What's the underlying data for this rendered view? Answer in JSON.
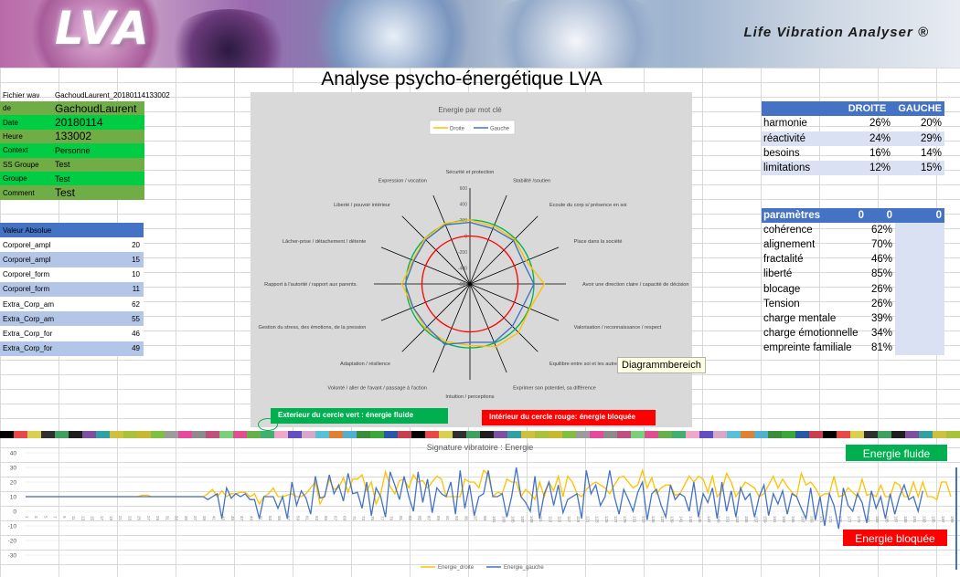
{
  "banner": {
    "logo": "LVA",
    "tagline": "Life Vibration Analyser ®"
  },
  "title": "Analyse psycho-énergétique LVA",
  "file": {
    "label": "Fichier wav",
    "value": "GachoudLaurent_20180114133002"
  },
  "info": [
    {
      "key": "de",
      "value": "GachoudLaurent",
      "bg": "#70ad47"
    },
    {
      "key": "Date",
      "value": "20180114",
      "bg": "#00cc44"
    },
    {
      "key": "Heure",
      "value": "133002",
      "bg": "#70ad47"
    },
    {
      "key": "Context",
      "value": "Personne",
      "bg": "#00cc44"
    },
    {
      "key": "SS Groupe",
      "value": "Test",
      "bg": "#70ad47"
    },
    {
      "key": "Groupe",
      "value": "Test",
      "bg": "#00cc44"
    },
    {
      "key": "Comment",
      "value": "Test",
      "bg": "#70ad47"
    }
  ],
  "absolute": {
    "header": "Valeur Absolue",
    "rows": [
      {
        "key": "Corporel_ampl",
        "value": "20"
      },
      {
        "key": "Corporel_ampl",
        "value": "15"
      },
      {
        "key": "Corporel_form",
        "value": "10"
      },
      {
        "key": "Corporel_form",
        "value": "11"
      },
      {
        "key": "Extra_Corp_am",
        "value": "62"
      },
      {
        "key": "Extra_Corp_am",
        "value": "55"
      },
      {
        "key": "Extra_Corp_for",
        "value": "46"
      },
      {
        "key": "Extra_Corp_for",
        "value": "49"
      }
    ]
  },
  "droite_gauche": {
    "header_droite": "DROITE",
    "header_gauche": "GAUCHE",
    "rows": [
      {
        "key": "harmonie",
        "droite": "26%",
        "gauche": "20%"
      },
      {
        "key": "réactivité",
        "droite": "24%",
        "gauche": "29%"
      },
      {
        "key": "besoins",
        "droite": "16%",
        "gauche": "14%"
      },
      {
        "key": "limitations",
        "droite": "12%",
        "gauche": "15%"
      }
    ]
  },
  "parametres": {
    "header": "paramètres",
    "header_values": [
      "0",
      "0",
      "0"
    ],
    "rows": [
      {
        "key": "cohérence",
        "value": "62%"
      },
      {
        "key": "alignement",
        "value": "70%"
      },
      {
        "key": "fractalité",
        "value": "46%"
      },
      {
        "key": "liberté",
        "value": "85%"
      },
      {
        "key": "blocage",
        "value": "26%"
      },
      {
        "key": "Tension",
        "value": "26%"
      },
      {
        "key": "charge mentale",
        "value": "39%"
      },
      {
        "key": "charge émotionnelle",
        "value": "34%"
      },
      {
        "key": "empreinte familiale",
        "value": "81%"
      }
    ]
  },
  "tooltip": "Diagrammbereich",
  "legend_buttons": {
    "green": "Exterieur du cercle vert : énergie fluide",
    "red": "Intérieur  du cercle rouge: énergie bloquée"
  },
  "badges": {
    "fluide": "Energie fluide",
    "bloquee": "Energie bloquée"
  },
  "colors": {
    "header_blue": "#4472c4",
    "light_blue": "#d9e1f2",
    "green": "#00b050",
    "red": "#ff0000",
    "droite": "#ffc000",
    "gauche": "#4472c4"
  },
  "chart_data": [
    {
      "type": "radar",
      "title": "Energie par mot clé",
      "legend": [
        "Droite",
        "Gauche"
      ],
      "legend_position": "top",
      "rlim": [
        -600,
        600
      ],
      "rticks": [
        "600",
        "400",
        "200",
        "0",
        "-200",
        "-400",
        "-600"
      ],
      "categories": [
        "Sécurité et protection",
        "Stabilité /soutien",
        "Ecoute du corp s/ présence en soi",
        "Place dans la société",
        "Avoir une direction claire / capacité de décision",
        "Valorisation / reconnaissance / respect",
        "Equilibre entre soi et les autres / positionnement",
        "Exprimer son potentiel, sa différence",
        "Intuition / perceptions",
        "Volonté / aller de l'avant / passage à l'action",
        "Adaptation / résilience",
        "Gestion du stress, des émotions, de la pression",
        "Rapport à l'autorité / rapport aux parents.",
        "Lâcher-prise / détachement / détente",
        "Liberté / pouvoir intérieur",
        "Expression / vocation"
      ],
      "series": [
        {
          "name": "Droite",
          "values": [
            200,
            180,
            190,
            160,
            330,
            210,
            260,
            250,
            170,
            180,
            190,
            170,
            250,
            170,
            200,
            220
          ]
        },
        {
          "name": "Gauche",
          "values": [
            170,
            150,
            170,
            120,
            200,
            120,
            150,
            190,
            130,
            220,
            160,
            170,
            210,
            160,
            180,
            200
          ]
        }
      ],
      "reference_circles": [
        {
          "name": "vert",
          "value": 200
        },
        {
          "name": "rouge",
          "value": 0
        }
      ]
    },
    {
      "type": "line",
      "title": "Signature vibratoire : Energie",
      "ylim": [
        -30,
        40
      ],
      "yticks": [
        40,
        30,
        20,
        10,
        0,
        -10,
        -20,
        -30
      ],
      "x_start": 1,
      "x_end": 199,
      "series": [
        {
          "name": "Energie_droite",
          "values": [
            10,
            10,
            10,
            10,
            10,
            10,
            10,
            10,
            10,
            10,
            10,
            10,
            10,
            10,
            10,
            10,
            10,
            10,
            10,
            10,
            10,
            10,
            10,
            10,
            10,
            11,
            11,
            10,
            10,
            10,
            10,
            10,
            10,
            10,
            10,
            10,
            10,
            10,
            10,
            12,
            15,
            10,
            14,
            10,
            12,
            12,
            13,
            13,
            10,
            12,
            5,
            10,
            12,
            16,
            10,
            10,
            11,
            12,
            10,
            10,
            12,
            16,
            20,
            5,
            11,
            22,
            15,
            16,
            23,
            13,
            22,
            22,
            25,
            14,
            20,
            5,
            12,
            27,
            17,
            12,
            21,
            22,
            16,
            25,
            20,
            21,
            16,
            20,
            24,
            22,
            10,
            10,
            10,
            10,
            22,
            20,
            20,
            16,
            28,
            25,
            10,
            13,
            12,
            22,
            20,
            20,
            10,
            15,
            12,
            8,
            20,
            10,
            20,
            14,
            24,
            10,
            24,
            20,
            12,
            10,
            15,
            18,
            20,
            18,
            16,
            12,
            18,
            23,
            24,
            20,
            16,
            18,
            28,
            16,
            23,
            12,
            16,
            18,
            18,
            11,
            12,
            18,
            24,
            20,
            24,
            22,
            13,
            24,
            10,
            14,
            26,
            20,
            10,
            15,
            20,
            18,
            16,
            10,
            12,
            18,
            24,
            16,
            22,
            17,
            13,
            10,
            26,
            18,
            20,
            16,
            10,
            12,
            12,
            24,
            10,
            11,
            16,
            13,
            10,
            22,
            11,
            12,
            10,
            18,
            10,
            10,
            20,
            18,
            10,
            10,
            20,
            10,
            20,
            10,
            10,
            8,
            20,
            20,
            10
          ]
        },
        {
          "name": "Energie_gauche",
          "values": [
            10,
            10,
            10,
            10,
            10,
            10,
            10,
            10,
            10,
            10,
            10,
            10,
            10,
            10,
            10,
            10,
            10,
            10,
            10,
            10,
            10,
            10,
            10,
            10,
            10,
            10,
            10,
            10,
            10,
            10,
            10,
            10,
            10,
            10,
            10,
            10,
            10,
            10,
            10,
            8,
            10,
            12,
            -5,
            16,
            9,
            12,
            10,
            12,
            8,
            8,
            -5,
            10,
            10,
            10,
            2,
            10,
            -5,
            20,
            4,
            14,
            9,
            -2,
            24,
            9,
            10,
            25,
            12,
            18,
            7,
            26,
            12,
            13,
            2,
            20,
            -3,
            16,
            10,
            -4,
            27,
            18,
            8,
            24,
            10,
            0,
            27,
            6,
            22,
            -1,
            16,
            12,
            10,
            20,
            -2,
            28,
            2,
            18,
            -3,
            10,
            12,
            28,
            10,
            10,
            12,
            -4,
            10,
            30,
            10,
            6,
            0,
            24,
            -5,
            12,
            20,
            4,
            18,
            -1,
            8,
            10,
            12,
            -5,
            28,
            12,
            18,
            4,
            10,
            28,
            10,
            -2,
            15,
            8,
            0,
            13,
            20,
            -6,
            12,
            15,
            4,
            -4,
            18,
            8,
            12,
            10,
            0,
            20,
            -4,
            12,
            6,
            16,
            -5,
            20,
            0,
            14,
            -4,
            16,
            8,
            12,
            -4,
            10,
            18,
            -3,
            12,
            5,
            14,
            -2,
            12,
            10,
            2,
            -5,
            16,
            -6,
            10,
            -10,
            12,
            4,
            -12,
            16,
            4,
            0,
            12,
            6,
            -8,
            14,
            2,
            10,
            -5,
            12,
            -2,
            10,
            18,
            8,
            10,
            0,
            14
          ]
        }
      ]
    }
  ]
}
